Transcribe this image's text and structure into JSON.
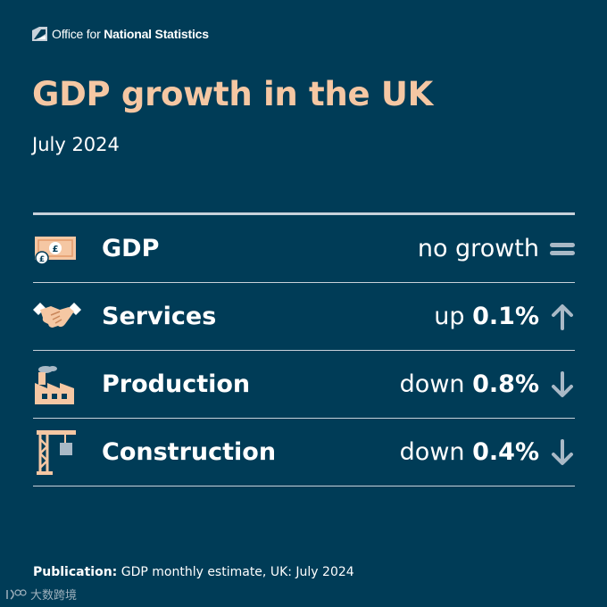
{
  "brand": {
    "name_prefix": "Office for ",
    "name_bold": "National Statistics"
  },
  "header": {
    "title": "GDP growth in the UK",
    "subtitle": "July 2024"
  },
  "rows": [
    {
      "label": "GDP",
      "value_prefix": "no growth",
      "value_bold": "",
      "trend": "flat",
      "icon": "banknote-icon"
    },
    {
      "label": "Services",
      "value_prefix": "up ",
      "value_bold": "0.1%",
      "trend": "up",
      "icon": "handshake-icon"
    },
    {
      "label": "Production",
      "value_prefix": "down ",
      "value_bold": "0.8%",
      "trend": "down",
      "icon": "factory-icon"
    },
    {
      "label": "Construction",
      "value_prefix": "down ",
      "value_bold": "0.4%",
      "trend": "down",
      "icon": "crane-icon"
    }
  ],
  "footer": {
    "label": "Publication:",
    "text": " GDP monthly estimate, UK: July 2024"
  },
  "watermark": {
    "text": "大数跨境"
  },
  "colors": {
    "background": "#003c57",
    "accent": "#f5c7a3",
    "divider": "#c8d1da",
    "icon_grey": "#a9b9c6"
  }
}
